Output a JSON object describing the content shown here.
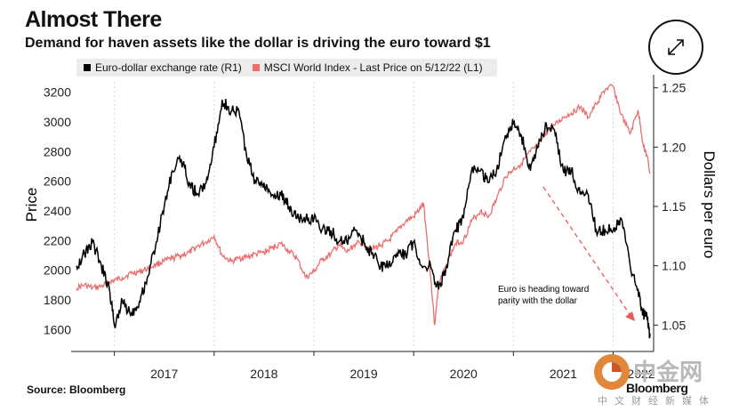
{
  "header": {
    "title": "Almost There",
    "subtitle": "Demand for haven assets like the dollar is driving the euro toward $1"
  },
  "footer": {
    "source": "Source: Bloomberg",
    "brand": "Bloomberg"
  },
  "watermark": {
    "logo_text": "中金网",
    "sub_text": "中文财经新媒体"
  },
  "colors": {
    "euro_series": "#000000",
    "msci_series": "#e8706e",
    "annotation": "#e8595a",
    "legend_bg": "#ececec",
    "grid": "#d9d9d9"
  },
  "chart_data": {
    "type": "line",
    "title": "Almost There",
    "subtitle": "Demand for haven assets like the dollar is driving the euro toward $1",
    "x_unit": "year",
    "x_ticks": [
      "2017",
      "2018",
      "2019",
      "2020",
      "2021",
      "2022"
    ],
    "xlim": [
      2016.62,
      2022.37
    ],
    "y_left": {
      "label": "Price",
      "ticks": [
        1600,
        1800,
        2000,
        2200,
        2400,
        2600,
        2800,
        3000,
        3200
      ],
      "range": [
        1470,
        3270
      ]
    },
    "y_right": {
      "label": "Dollars per euro",
      "ticks": [
        "1.05",
        "1.10",
        "1.15",
        "1.20",
        "1.25"
      ],
      "range": [
        1.03,
        1.255
      ]
    },
    "legend": {
      "placement": "top-left",
      "items": [
        "Euro-dollar exchange rate (R1)",
        "MSCI World Index - Last Price on 5/12/22 (L1)"
      ]
    },
    "annotation": {
      "text_lines": [
        "Euro is heading toward",
        "parity with the dollar"
      ]
    },
    "series": [
      {
        "name": "Euro-dollar exchange rate (R1)",
        "axis": "right",
        "points": [
          [
            2016.62,
            1.1
          ],
          [
            2016.7,
            1.11
          ],
          [
            2016.78,
            1.12
          ],
          [
            2016.87,
            1.1
          ],
          [
            2016.95,
            1.08
          ],
          [
            2017.0,
            1.05
          ],
          [
            2017.08,
            1.07
          ],
          [
            2017.17,
            1.06
          ],
          [
            2017.25,
            1.07
          ],
          [
            2017.33,
            1.09
          ],
          [
            2017.42,
            1.12
          ],
          [
            2017.5,
            1.15
          ],
          [
            2017.58,
            1.18
          ],
          [
            2017.67,
            1.19
          ],
          [
            2017.75,
            1.17
          ],
          [
            2017.83,
            1.16
          ],
          [
            2017.92,
            1.17
          ],
          [
            2018.0,
            1.2
          ],
          [
            2018.08,
            1.24
          ],
          [
            2018.17,
            1.23
          ],
          [
            2018.25,
            1.23
          ],
          [
            2018.33,
            1.19
          ],
          [
            2018.42,
            1.17
          ],
          [
            2018.5,
            1.17
          ],
          [
            2018.58,
            1.16
          ],
          [
            2018.67,
            1.16
          ],
          [
            2018.75,
            1.15
          ],
          [
            2018.83,
            1.14
          ],
          [
            2018.92,
            1.14
          ],
          [
            2019.0,
            1.14
          ],
          [
            2019.08,
            1.13
          ],
          [
            2019.17,
            1.13
          ],
          [
            2019.25,
            1.12
          ],
          [
            2019.33,
            1.12
          ],
          [
            2019.42,
            1.13
          ],
          [
            2019.5,
            1.12
          ],
          [
            2019.58,
            1.11
          ],
          [
            2019.67,
            1.1
          ],
          [
            2019.75,
            1.1
          ],
          [
            2019.83,
            1.11
          ],
          [
            2019.92,
            1.11
          ],
          [
            2020.0,
            1.12
          ],
          [
            2020.08,
            1.1
          ],
          [
            2020.17,
            1.1
          ],
          [
            2020.25,
            1.08
          ],
          [
            2020.33,
            1.1
          ],
          [
            2020.42,
            1.13
          ],
          [
            2020.5,
            1.14
          ],
          [
            2020.58,
            1.18
          ],
          [
            2020.67,
            1.18
          ],
          [
            2020.75,
            1.17
          ],
          [
            2020.83,
            1.18
          ],
          [
            2020.92,
            1.21
          ],
          [
            2021.0,
            1.22
          ],
          [
            2021.08,
            1.21
          ],
          [
            2021.17,
            1.18
          ],
          [
            2021.25,
            1.2
          ],
          [
            2021.33,
            1.22
          ],
          [
            2021.42,
            1.21
          ],
          [
            2021.5,
            1.18
          ],
          [
            2021.58,
            1.18
          ],
          [
            2021.67,
            1.16
          ],
          [
            2021.75,
            1.16
          ],
          [
            2021.83,
            1.13
          ],
          [
            2021.92,
            1.13
          ],
          [
            2022.0,
            1.13
          ],
          [
            2022.08,
            1.14
          ],
          [
            2022.17,
            1.1
          ],
          [
            2022.25,
            1.08
          ],
          [
            2022.3,
            1.06
          ],
          [
            2022.34,
            1.055
          ],
          [
            2022.37,
            1.04
          ]
        ]
      },
      {
        "name": "MSCI World Index - Last Price on 5/12/22 (L1)",
        "axis": "left",
        "points": [
          [
            2016.62,
            1880
          ],
          [
            2016.7,
            1900
          ],
          [
            2016.78,
            1880
          ],
          [
            2016.87,
            1890
          ],
          [
            2016.95,
            1920
          ],
          [
            2017.0,
            1930
          ],
          [
            2017.08,
            1950
          ],
          [
            2017.17,
            1980
          ],
          [
            2017.25,
            1990
          ],
          [
            2017.33,
            2010
          ],
          [
            2017.42,
            2040
          ],
          [
            2017.5,
            2060
          ],
          [
            2017.58,
            2080
          ],
          [
            2017.67,
            2100
          ],
          [
            2017.75,
            2120
          ],
          [
            2017.83,
            2160
          ],
          [
            2017.92,
            2190
          ],
          [
            2018.0,
            2230
          ],
          [
            2018.08,
            2100
          ],
          [
            2018.17,
            2060
          ],
          [
            2018.25,
            2080
          ],
          [
            2018.33,
            2090
          ],
          [
            2018.42,
            2110
          ],
          [
            2018.5,
            2120
          ],
          [
            2018.58,
            2150
          ],
          [
            2018.67,
            2180
          ],
          [
            2018.75,
            2130
          ],
          [
            2018.83,
            2080
          ],
          [
            2018.92,
            1950
          ],
          [
            2019.0,
            1990
          ],
          [
            2019.08,
            2070
          ],
          [
            2019.17,
            2110
          ],
          [
            2019.25,
            2170
          ],
          [
            2019.33,
            2120
          ],
          [
            2019.42,
            2180
          ],
          [
            2019.5,
            2180
          ],
          [
            2019.58,
            2140
          ],
          [
            2019.67,
            2170
          ],
          [
            2019.75,
            2200
          ],
          [
            2019.83,
            2260
          ],
          [
            2019.92,
            2330
          ],
          [
            2020.0,
            2360
          ],
          [
            2020.08,
            2430
          ],
          [
            2020.1,
            2450
          ],
          [
            2020.17,
            1960
          ],
          [
            2020.21,
            1630
          ],
          [
            2020.25,
            1900
          ],
          [
            2020.33,
            2040
          ],
          [
            2020.42,
            2180
          ],
          [
            2020.5,
            2200
          ],
          [
            2020.58,
            2330
          ],
          [
            2020.67,
            2400
          ],
          [
            2020.75,
            2360
          ],
          [
            2020.83,
            2480
          ],
          [
            2020.92,
            2630
          ],
          [
            2021.0,
            2680
          ],
          [
            2021.08,
            2720
          ],
          [
            2021.17,
            2800
          ],
          [
            2021.25,
            2840
          ],
          [
            2021.33,
            2930
          ],
          [
            2021.42,
            2980
          ],
          [
            2021.5,
            3030
          ],
          [
            2021.58,
            3060
          ],
          [
            2021.67,
            3100
          ],
          [
            2021.75,
            3030
          ],
          [
            2021.83,
            3120
          ],
          [
            2021.92,
            3220
          ],
          [
            2022.0,
            3240
          ],
          [
            2022.08,
            3050
          ],
          [
            2022.17,
            2920
          ],
          [
            2022.25,
            3080
          ],
          [
            2022.3,
            2850
          ],
          [
            2022.34,
            2770
          ],
          [
            2022.37,
            2650
          ]
        ]
      }
    ]
  }
}
